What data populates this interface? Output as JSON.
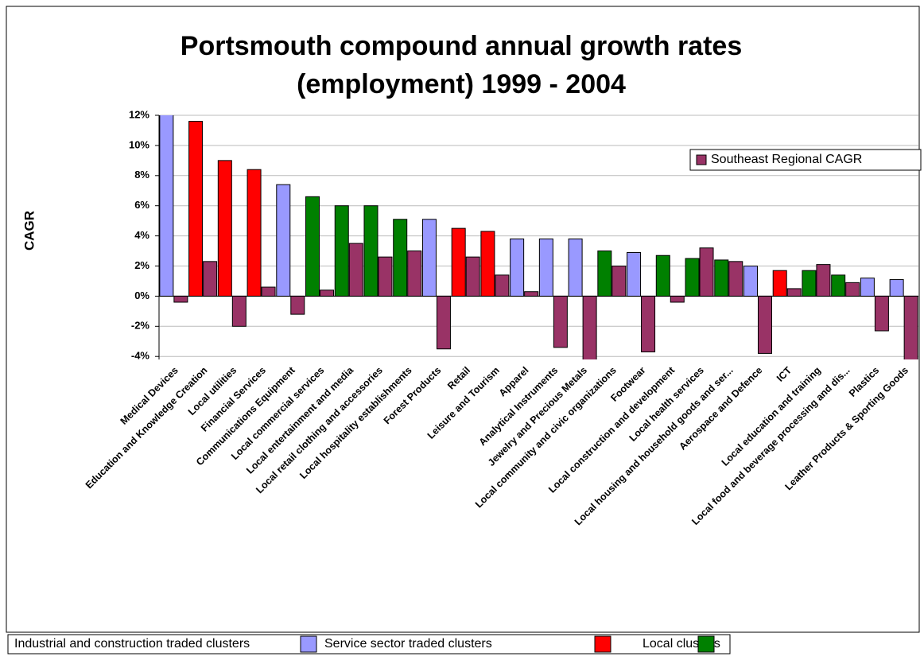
{
  "chart_data": {
    "type": "bar",
    "title": [
      "Portsmouth compound annual growth rates",
      "(employment) 1999 - 2004"
    ],
    "y_label": "CAGR",
    "categories": [
      "Medical Devices",
      "Education and Knowledge Creation",
      "Local utilities",
      "Financial Services",
      "Communications Equipment",
      "Local commercial services",
      "Local entertainment and media",
      "Local retail clothing and accessories",
      "Local hospitality establishments",
      "Forest Products",
      "Retail",
      "Leisure and Tourism",
      "Apparel",
      "Analytical Instruments",
      "Jewelry and Precious Metals",
      "Local community and civic organizations",
      "Footwear",
      "Local construction and development",
      "Local health services",
      "Local housing and household goods and ser...",
      "Aerospace and Defence",
      "ICT",
      "Local education and training",
      "Local food and beverage processing and dis...",
      "Plastics",
      "Leather Products & Sporting Goods"
    ],
    "series": [
      {
        "values": [
          12.5,
          11.6,
          9.0,
          8.4,
          7.4,
          6.6,
          6.0,
          6.0,
          5.1,
          5.1,
          4.5,
          4.3,
          3.8,
          3.8,
          3.8,
          3.0,
          2.9,
          2.7,
          2.5,
          2.4,
          2.0,
          1.7,
          1.7,
          1.4,
          1.2,
          1.1
        ],
        "colors": [
          "#9999ff",
          "#ff0000",
          "#ff0000",
          "#ff0000",
          "#9999ff",
          "#008000",
          "#008000",
          "#008000",
          "#008000",
          "#9999ff",
          "#ff0000",
          "#ff0000",
          "#9999ff",
          "#9999ff",
          "#9999ff",
          "#008000",
          "#9999ff",
          "#008000",
          "#008000",
          "#008000",
          "#9999ff",
          "#ff0000",
          "#008000",
          "#008000",
          "#9999ff",
          "#9999ff"
        ]
      },
      {
        "name": "Southeast Regional CAGR",
        "color": "#993366",
        "values": [
          -0.4,
          2.3,
          -2.0,
          0.6,
          -1.2,
          0.4,
          3.5,
          2.6,
          3.0,
          -3.5,
          2.6,
          1.4,
          0.3,
          -3.4,
          -4.5,
          2.0,
          -3.7,
          -0.4,
          3.2,
          2.3,
          -3.8,
          0.5,
          2.1,
          0.9,
          -2.3,
          -4.5
        ]
      }
    ],
    "ylim": [
      -4.2,
      12
    ],
    "yticks": [
      {
        "value": 12,
        "label": "12%"
      },
      {
        "value": 10,
        "label": "10%"
      },
      {
        "value": 8,
        "label": "8%"
      },
      {
        "value": 6,
        "label": "6%"
      },
      {
        "value": 4,
        "label": "4%"
      },
      {
        "value": 2,
        "label": "2%"
      },
      {
        "value": 0,
        "label": "0%"
      },
      {
        "value": -2,
        "label": "-2%"
      },
      {
        "value": -4,
        "label": "-4%"
      }
    ],
    "grid": true,
    "legend": "upper right",
    "color_key": [
      {
        "label": "Industrial and construction traded clusters",
        "color": "#9999ff"
      },
      {
        "label": "Service sector traded clusters",
        "color": "#ff0000"
      },
      {
        "label": "Local clusters",
        "color": "#008000"
      }
    ]
  }
}
